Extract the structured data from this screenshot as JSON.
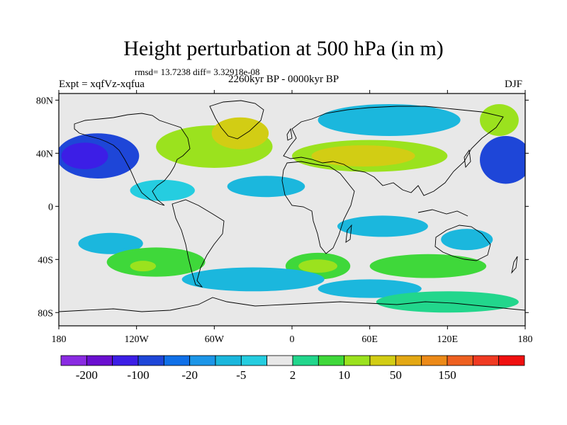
{
  "title": "Height perturbation at 500 hPa (in m)",
  "stats": "rmsd= 13.7238 diff= 3.32918e-08",
  "experiment": "Expt = xqfVz-xqfua",
  "period": "2260kyr BP - 0000kyr BP",
  "season": "DJF",
  "lat_ticks": [
    "80N",
    "40N",
    "0",
    "40S",
    "80S"
  ],
  "lon_ticks": [
    "180",
    "120W",
    "60W",
    "0",
    "60E",
    "120E",
    "180"
  ],
  "colorbar": {
    "colors": [
      "#8a2be2",
      "#6a0fd0",
      "#3c1ee6",
      "#1e46d8",
      "#1070e8",
      "#1c96e8",
      "#1bb7dd",
      "#25cde0",
      "#e8e8e8",
      "#22d68c",
      "#3fd83a",
      "#9be21e",
      "#d2cd14",
      "#e3a814",
      "#ec8a18",
      "#ee6020",
      "#f03a22",
      "#f01010"
    ],
    "labels": [
      "-200",
      "-100",
      "-20",
      "-5",
      "2",
      "10",
      "50",
      "150"
    ]
  },
  "field_regions": [
    {
      "name": "npac-low",
      "lon": -150,
      "lat": 38,
      "rlon": 32,
      "rlat": 17,
      "level": 3
    },
    {
      "name": "npac-low-core",
      "lon": -160,
      "lat": 38,
      "rlon": 18,
      "rlat": 10,
      "level": 2
    },
    {
      "name": "natl-high",
      "lon": -60,
      "lat": 45,
      "rlon": 45,
      "rlat": 16,
      "level": 11
    },
    {
      "name": "natl-high-core",
      "lon": -40,
      "lat": 55,
      "rlon": 22,
      "rlat": 12,
      "level": 12
    },
    {
      "name": "eurasia-high",
      "lon": 60,
      "lat": 38,
      "rlon": 60,
      "rlat": 12,
      "level": 11
    },
    {
      "name": "eurasia-high-core",
      "lon": 55,
      "lat": 38,
      "rlon": 40,
      "rlat": 8,
      "level": 12
    },
    {
      "name": "siberia-low",
      "lon": 75,
      "lat": 65,
      "rlon": 55,
      "rlat": 12,
      "level": 6
    },
    {
      "name": "wpac-low",
      "lon": 165,
      "lat": 35,
      "rlon": 20,
      "rlat": 18,
      "level": 3
    },
    {
      "name": "alaska-high",
      "lon": 160,
      "lat": 65,
      "rlon": 15,
      "rlat": 12,
      "level": 11
    },
    {
      "name": "trop-atl-low",
      "lon": -20,
      "lat": 15,
      "rlon": 30,
      "rlat": 8,
      "level": 6
    },
    {
      "name": "trop-pac-low",
      "lon": -100,
      "lat": 12,
      "rlon": 25,
      "rlat": 8,
      "level": 7
    },
    {
      "name": "io-low",
      "lon": 70,
      "lat": -15,
      "rlon": 35,
      "rlat": 8,
      "level": 6
    },
    {
      "name": "aus-low",
      "lon": 135,
      "lat": -25,
      "rlon": 20,
      "rlat": 8,
      "level": 6
    },
    {
      "name": "spac-low",
      "lon": -140,
      "lat": -28,
      "rlon": 25,
      "rlat": 8,
      "level": 6
    },
    {
      "name": "spac-high",
      "lon": -105,
      "lat": -42,
      "rlon": 38,
      "rlat": 11,
      "level": 10
    },
    {
      "name": "spac-high-core",
      "lon": -115,
      "lat": -45,
      "rlon": 10,
      "rlat": 4,
      "level": 11
    },
    {
      "name": "satl-high",
      "lon": 20,
      "lat": -45,
      "rlon": 25,
      "rlat": 10,
      "level": 10
    },
    {
      "name": "satl-high-core",
      "lon": 20,
      "lat": -45,
      "rlon": 15,
      "rlat": 5,
      "level": 11
    },
    {
      "name": "sio-high",
      "lon": 105,
      "lat": -45,
      "rlon": 45,
      "rlat": 9,
      "level": 10
    },
    {
      "name": "southern-low",
      "lon": -30,
      "lat": -55,
      "rlon": 55,
      "rlat": 9,
      "level": 6
    },
    {
      "name": "southern-low-2",
      "lon": 60,
      "lat": -62,
      "rlon": 40,
      "rlat": 7,
      "level": 6
    },
    {
      "name": "antarctic-high",
      "lon": 120,
      "lat": -72,
      "rlon": 55,
      "rlat": 8,
      "level": 9
    }
  ]
}
